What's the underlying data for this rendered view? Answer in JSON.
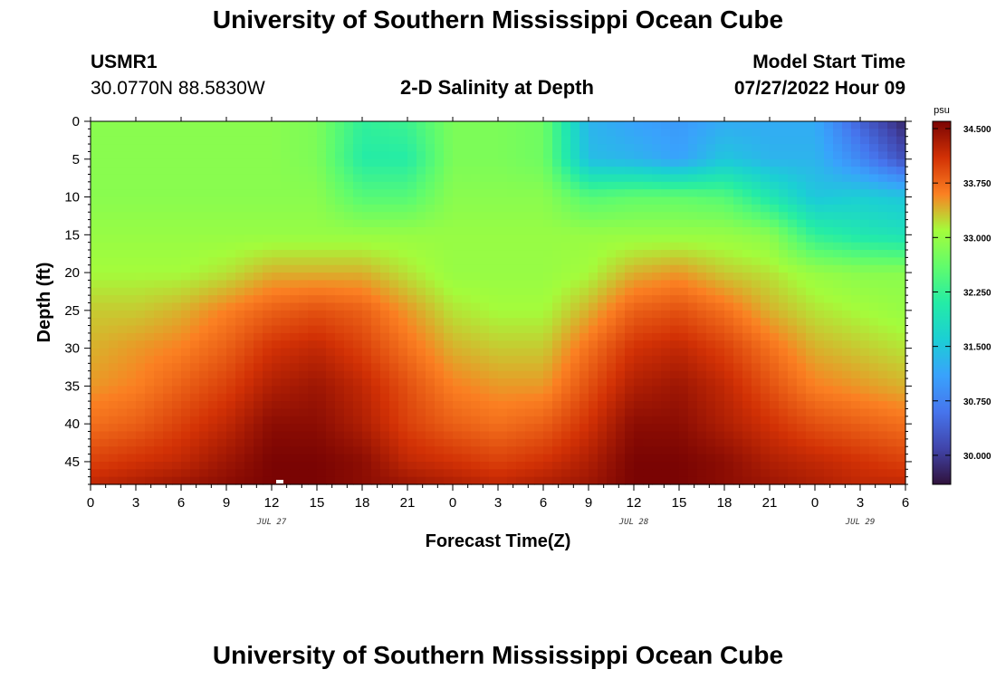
{
  "page_title": "University of Southern Mississippi Ocean Cube",
  "footer_title": "University of Southern Mississippi Ocean Cube",
  "station": {
    "id": "USMR1",
    "coords": "30.0770N  88.5830W"
  },
  "model_start": {
    "label": "Model Start Time",
    "value": "07/27/2022 Hour 09"
  },
  "colorbar": {
    "unit": "psu",
    "min": 29.6,
    "max": 34.6,
    "tick_values": [
      34.5,
      33.75,
      33.0,
      32.25,
      31.5,
      30.75,
      30.0
    ],
    "tick_labels": [
      "34.500",
      "33.750",
      "33.000",
      "32.250",
      "31.500",
      "30.750",
      "30.000"
    ]
  },
  "chart_data": {
    "type": "heatmap",
    "title": "2-D Salinity at Depth",
    "xlabel": "Forecast Time(Z)",
    "ylabel": "Depth (ft)",
    "x_range": [
      0,
      54
    ],
    "y_range": [
      0,
      48
    ],
    "y_inverted": true,
    "x_tick_values": [
      0,
      3,
      6,
      9,
      12,
      15,
      18,
      21,
      24,
      27,
      30,
      33,
      36,
      39,
      42,
      45,
      48,
      51,
      54
    ],
    "x_tick_labels": [
      "0",
      "3",
      "6",
      "9",
      "12",
      "15",
      "18",
      "21",
      "0",
      "3",
      "6",
      "9",
      "12",
      "15",
      "18",
      "21",
      "0",
      "3",
      "6"
    ],
    "y_tick_values": [
      0,
      5,
      10,
      15,
      20,
      25,
      30,
      35,
      40,
      45
    ],
    "y_tick_labels": [
      "0",
      "5",
      "10",
      "15",
      "20",
      "25",
      "30",
      "35",
      "40",
      "45"
    ],
    "date_labels": [
      {
        "text": "JUL 27",
        "x": 12
      },
      {
        "text": "JUL 28",
        "x": 36
      },
      {
        "text": "JUL 29",
        "x": 51
      }
    ],
    "colorbar_unit": "psu",
    "value_range": [
      29.6,
      34.6
    ],
    "grid": false,
    "description_note": "Salinity field sampled from the figure",
    "x": [
      0,
      3,
      6,
      9,
      12,
      15,
      18,
      21,
      24,
      27,
      30,
      33,
      36,
      39,
      42,
      45,
      48,
      51,
      54
    ],
    "depths": [
      0,
      5,
      10,
      15,
      20,
      25,
      30,
      35,
      40,
      45,
      48
    ],
    "values": [
      [
        32.9,
        32.9,
        32.9,
        32.9,
        32.9,
        32.8,
        32.2,
        32.3,
        32.8,
        32.8,
        32.7,
        31.3,
        31.1,
        31.0,
        31.2,
        31.2,
        31.2,
        30.4,
        29.8
      ],
      [
        32.9,
        32.9,
        32.9,
        32.9,
        32.9,
        32.8,
        32.1,
        32.1,
        32.8,
        32.8,
        32.7,
        31.4,
        31.3,
        31.1,
        31.5,
        31.3,
        31.3,
        30.8,
        30.2
      ],
      [
        32.9,
        32.9,
        32.9,
        32.9,
        32.9,
        32.9,
        32.5,
        32.5,
        32.9,
        32.9,
        32.9,
        32.5,
        32.6,
        32.6,
        32.5,
        32.0,
        31.5,
        31.6,
        31.5
      ],
      [
        33.0,
        33.0,
        33.0,
        33.0,
        33.0,
        33.0,
        33.0,
        33.0,
        33.0,
        33.0,
        33.0,
        33.0,
        33.0,
        33.0,
        33.0,
        32.9,
        32.2,
        32.0,
        31.9
      ],
      [
        33.1,
        33.1,
        33.1,
        33.2,
        33.4,
        33.4,
        33.4,
        33.2,
        33.0,
        33.0,
        33.0,
        33.1,
        33.4,
        33.5,
        33.3,
        33.2,
        33.0,
        32.9,
        32.9
      ],
      [
        33.3,
        33.3,
        33.4,
        33.6,
        33.8,
        33.9,
        33.8,
        33.5,
        33.2,
        33.1,
        33.1,
        33.4,
        33.8,
        33.9,
        33.7,
        33.4,
        33.2,
        33.1,
        33.0
      ],
      [
        33.4,
        33.5,
        33.6,
        33.8,
        34.1,
        34.2,
        34.0,
        33.7,
        33.4,
        33.3,
        33.3,
        33.7,
        34.1,
        34.2,
        34.0,
        33.7,
        33.4,
        33.3,
        33.2
      ],
      [
        33.5,
        33.6,
        33.8,
        34.0,
        34.3,
        34.4,
        34.2,
        33.9,
        33.6,
        33.5,
        33.5,
        33.9,
        34.3,
        34.4,
        34.2,
        33.9,
        33.6,
        33.5,
        33.4
      ],
      [
        33.7,
        33.8,
        34.0,
        34.2,
        34.5,
        34.5,
        34.3,
        34.0,
        33.8,
        33.7,
        33.8,
        34.1,
        34.5,
        34.5,
        34.3,
        34.1,
        33.9,
        33.8,
        33.7
      ],
      [
        34.0,
        34.1,
        34.2,
        34.4,
        34.6,
        34.6,
        34.5,
        34.2,
        34.1,
        34.0,
        34.1,
        34.3,
        34.6,
        34.6,
        34.5,
        34.3,
        34.2,
        34.1,
        34.0
      ],
      [
        34.2,
        34.3,
        34.4,
        34.5,
        34.6,
        34.6,
        34.5,
        34.4,
        34.3,
        34.2,
        34.3,
        34.4,
        34.6,
        34.6,
        34.5,
        34.4,
        34.3,
        34.2,
        34.2
      ]
    ]
  }
}
